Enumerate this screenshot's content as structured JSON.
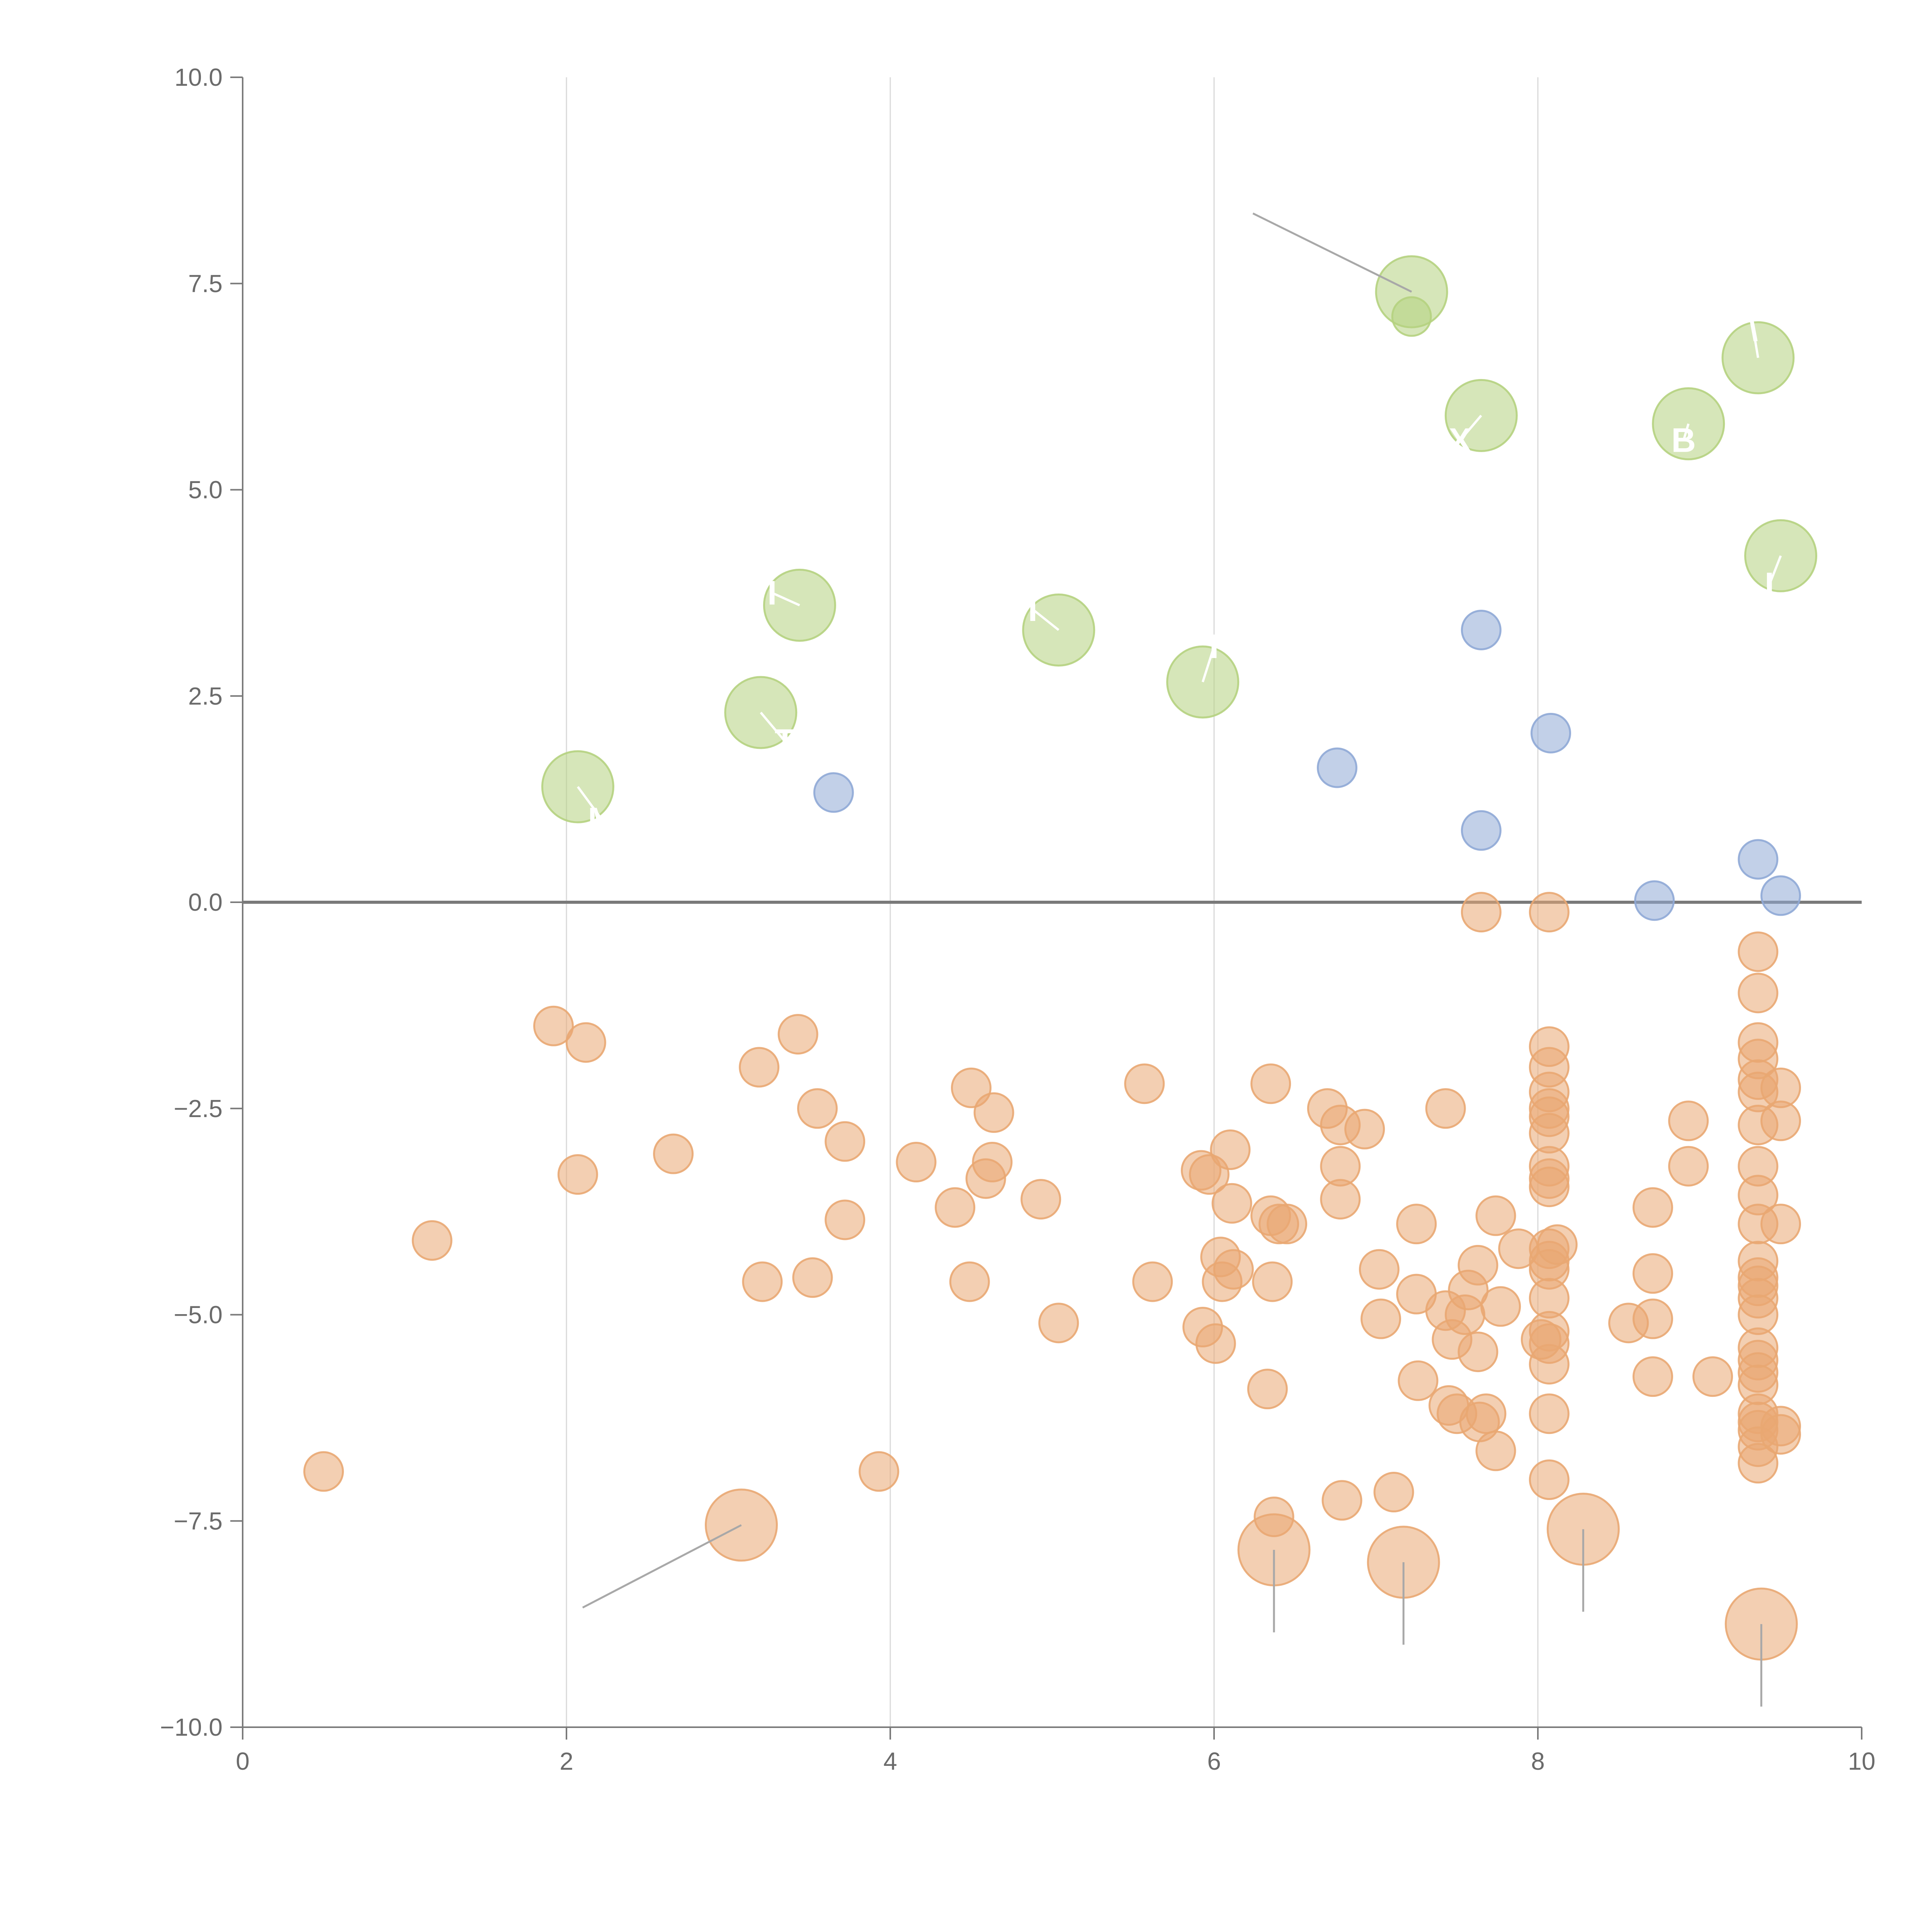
{
  "chart_data": {
    "type": "scatter",
    "title": "",
    "xlabel": "",
    "ylabel": "",
    "xlim": [
      0,
      10
    ],
    "ylim": [
      -10,
      10
    ],
    "x_ticks": [
      "0",
      "2",
      "4",
      "6",
      "8",
      "10"
    ],
    "y_ticks": [
      "10.0",
      "7.5",
      "5.0",
      "2.5",
      "0.0",
      "−2.5",
      "−5.0",
      "−7.5",
      "−10.0"
    ],
    "vertical_gridlines_at": [
      2,
      4,
      6,
      8
    ],
    "zero_line": true,
    "colors": {
      "green": "#b5d17f",
      "blue": "#8fa9d6",
      "orange": "#e9a772",
      "axis": "#7a7a7a",
      "grid": "#d9d9d9"
    },
    "series": [
      {
        "name": "green-large",
        "color": "#b5d17f",
        "size": "large",
        "points": [
          [
            2.07,
            1.4
          ],
          [
            3.2,
            2.3
          ],
          [
            3.44,
            3.6
          ],
          [
            5.04,
            3.3
          ],
          [
            5.93,
            2.67
          ],
          [
            7.22,
            7.4
          ],
          [
            7.65,
            5.9
          ],
          [
            8.93,
            5.8
          ],
          [
            9.36,
            6.6
          ],
          [
            9.5,
            4.2
          ]
        ]
      },
      {
        "name": "green-small",
        "color": "#b5d17f",
        "size": "small",
        "points": [
          [
            7.22,
            7.1
          ]
        ]
      },
      {
        "name": "blue",
        "color": "#8fa9d6",
        "size": "small",
        "points": [
          [
            3.65,
            1.33
          ],
          [
            6.76,
            1.63
          ],
          [
            7.65,
            3.3
          ],
          [
            7.65,
            0.87
          ],
          [
            8.08,
            2.05
          ],
          [
            8.72,
            0.02
          ],
          [
            9.36,
            0.52
          ],
          [
            9.5,
            0.08
          ]
        ]
      },
      {
        "name": "orange-small",
        "color": "#e9a772",
        "size": "small",
        "points": [
          [
            0.5,
            -6.9
          ],
          [
            1.17,
            -4.1
          ],
          [
            1.92,
            -1.5
          ],
          [
            2.07,
            -3.3
          ],
          [
            2.12,
            -1.7
          ],
          [
            2.66,
            -3.05
          ],
          [
            3.19,
            -2.0
          ],
          [
            3.21,
            -4.6
          ],
          [
            3.43,
            -1.6
          ],
          [
            3.52,
            -4.55
          ],
          [
            3.55,
            -2.5
          ],
          [
            3.72,
            -2.9
          ],
          [
            3.72,
            -3.85
          ],
          [
            3.93,
            -6.9
          ],
          [
            4.16,
            -3.15
          ],
          [
            4.4,
            -3.7
          ],
          [
            4.49,
            -4.6
          ],
          [
            4.5,
            -2.25
          ],
          [
            4.59,
            -3.35
          ],
          [
            4.63,
            -3.15
          ],
          [
            4.64,
            -2.55
          ],
          [
            4.93,
            -3.6
          ],
          [
            5.04,
            -5.1
          ],
          [
            5.57,
            -2.2
          ],
          [
            5.62,
            -4.6
          ],
          [
            5.92,
            -3.25
          ],
          [
            5.93,
            -5.15
          ],
          [
            5.97,
            -3.3
          ],
          [
            6.01,
            -5.35
          ],
          [
            6.04,
            -4.3
          ],
          [
            6.05,
            -4.6
          ],
          [
            6.1,
            -3.0
          ],
          [
            6.11,
            -3.65
          ],
          [
            6.12,
            -4.45
          ],
          [
            6.33,
            -5.9
          ],
          [
            6.35,
            -2.2
          ],
          [
            6.35,
            -3.8
          ],
          [
            6.36,
            -4.6
          ],
          [
            6.37,
            -7.45
          ],
          [
            6.4,
            -3.9
          ],
          [
            6.45,
            -3.9
          ],
          [
            6.7,
            -2.5
          ],
          [
            6.78,
            -2.7
          ],
          [
            6.78,
            -3.2
          ],
          [
            6.78,
            -3.6
          ],
          [
            6.79,
            -7.25
          ],
          [
            6.93,
            -2.75
          ],
          [
            7.02,
            -4.45
          ],
          [
            7.03,
            -5.05
          ],
          [
            7.11,
            -7.15
          ],
          [
            7.25,
            -3.9
          ],
          [
            7.25,
            -4.75
          ],
          [
            7.26,
            -5.8
          ],
          [
            7.43,
            -2.5
          ],
          [
            7.43,
            -4.95
          ],
          [
            7.45,
            -6.1
          ],
          [
            7.47,
            -5.3
          ],
          [
            7.5,
            -6.2
          ],
          [
            7.55,
            -5.0
          ],
          [
            7.57,
            -4.7
          ],
          [
            7.63,
            -4.4
          ],
          [
            7.63,
            -5.45
          ],
          [
            7.64,
            -6.3
          ],
          [
            7.68,
            -6.2
          ],
          [
            7.74,
            -3.8
          ],
          [
            7.74,
            -6.65
          ],
          [
            7.77,
            -4.9
          ],
          [
            7.88,
            -4.2
          ],
          [
            8.07,
            -1.75
          ],
          [
            8.07,
            -2.0
          ],
          [
            8.07,
            -2.3
          ],
          [
            8.07,
            -2.5
          ],
          [
            8.07,
            -2.6
          ],
          [
            8.07,
            -2.8
          ],
          [
            8.07,
            -3.2
          ],
          [
            8.07,
            -3.35
          ],
          [
            8.07,
            -3.45
          ],
          [
            8.07,
            -4.2
          ],
          [
            8.07,
            -4.35
          ],
          [
            8.07,
            -4.45
          ],
          [
            8.07,
            -4.8
          ],
          [
            8.07,
            -5.2
          ],
          [
            8.07,
            -5.35
          ],
          [
            8.07,
            -5.6
          ],
          [
            8.07,
            -6.2
          ],
          [
            8.07,
            -7.0
          ],
          [
            8.02,
            -5.3
          ],
          [
            8.12,
            -4.15
          ],
          [
            8.56,
            -5.1
          ],
          [
            8.71,
            -3.7
          ],
          [
            8.71,
            -4.5
          ],
          [
            8.71,
            -5.05
          ],
          [
            8.71,
            -5.75
          ],
          [
            8.93,
            -2.65
          ],
          [
            8.93,
            -3.2
          ],
          [
            9.08,
            -5.75
          ],
          [
            9.36,
            -0.6
          ],
          [
            9.36,
            -1.1
          ],
          [
            9.36,
            -1.7
          ],
          [
            9.36,
            -1.9
          ],
          [
            9.36,
            -2.15
          ],
          [
            9.36,
            -2.3
          ],
          [
            9.36,
            -2.7
          ],
          [
            9.36,
            -3.2
          ],
          [
            9.36,
            -3.55
          ],
          [
            9.36,
            -3.9
          ],
          [
            9.36,
            -4.35
          ],
          [
            9.36,
            -4.55
          ],
          [
            9.36,
            -4.65
          ],
          [
            9.36,
            -4.8
          ],
          [
            9.36,
            -5.0
          ],
          [
            9.36,
            -5.4
          ],
          [
            9.36,
            -5.55
          ],
          [
            9.36,
            -5.7
          ],
          [
            9.36,
            -5.85
          ],
          [
            9.36,
            -6.2
          ],
          [
            9.36,
            -6.3
          ],
          [
            9.36,
            -6.4
          ],
          [
            9.36,
            -6.6
          ],
          [
            9.36,
            -6.8
          ],
          [
            9.5,
            -2.25
          ],
          [
            9.5,
            -2.65
          ],
          [
            9.5,
            -3.9
          ],
          [
            9.5,
            -6.35
          ],
          [
            9.5,
            -6.45
          ],
          [
            7.65,
            -0.12
          ],
          [
            8.07,
            -0.12
          ]
        ]
      },
      {
        "name": "orange-large",
        "color": "#e9a772",
        "size": "large",
        "points": [
          [
            3.08,
            -7.55
          ],
          [
            6.37,
            -7.85
          ],
          [
            7.17,
            -8.0
          ],
          [
            8.28,
            -7.6
          ],
          [
            9.38,
            -8.75
          ]
        ]
      }
    ],
    "annotations": [
      {
        "text": "M",
        "at": [
          2.07,
          1.4
        ],
        "label_at": [
          2.22,
          1.0
        ]
      },
      {
        "text": "T",
        "at": [
          3.2,
          2.3
        ],
        "label_at": [
          3.35,
          1.95
        ]
      },
      {
        "text": "I",
        "at": [
          3.44,
          3.6
        ],
        "label_at": [
          3.27,
          3.75
        ]
      },
      {
        "text": "I",
        "at": [
          5.04,
          3.3
        ],
        "label_at": [
          4.88,
          3.55
        ]
      },
      {
        "text": "I",
        "at": [
          5.93,
          2.67
        ],
        "label_at": [
          6.0,
          3.1
        ]
      },
      {
        "text": "X",
        "at": [
          7.65,
          5.9
        ],
        "label_at": [
          7.52,
          5.6
        ]
      },
      {
        "text": "B",
        "at": [
          8.93,
          5.8
        ],
        "label_at": [
          8.9,
          5.6
        ]
      },
      {
        "text": "\\",
        "at": [
          9.36,
          6.6
        ],
        "label_at": [
          9.33,
          6.95
        ]
      },
      {
        "text": "I",
        "at": [
          9.5,
          4.2
        ],
        "label_at": [
          9.43,
          3.85
        ]
      },
      {
        "text": "",
        "at": [
          7.22,
          7.4
        ],
        "label_at": [
          6.24,
          8.35
        ]
      },
      {
        "text": "",
        "at": [
          3.08,
          -7.55
        ],
        "label_at": [
          2.1,
          -8.55
        ]
      },
      {
        "text": "",
        "at": [
          6.37,
          -7.85
        ],
        "label_at": [
          6.37,
          -8.85
        ]
      },
      {
        "text": "",
        "at": [
          7.17,
          -8.0
        ],
        "label_at": [
          7.17,
          -9.0
        ]
      },
      {
        "text": "",
        "at": [
          8.28,
          -7.6
        ],
        "label_at": [
          8.28,
          -8.6
        ]
      },
      {
        "text": "",
        "at": [
          9.38,
          -8.75
        ],
        "label_at": [
          9.38,
          -9.75
        ]
      }
    ]
  }
}
